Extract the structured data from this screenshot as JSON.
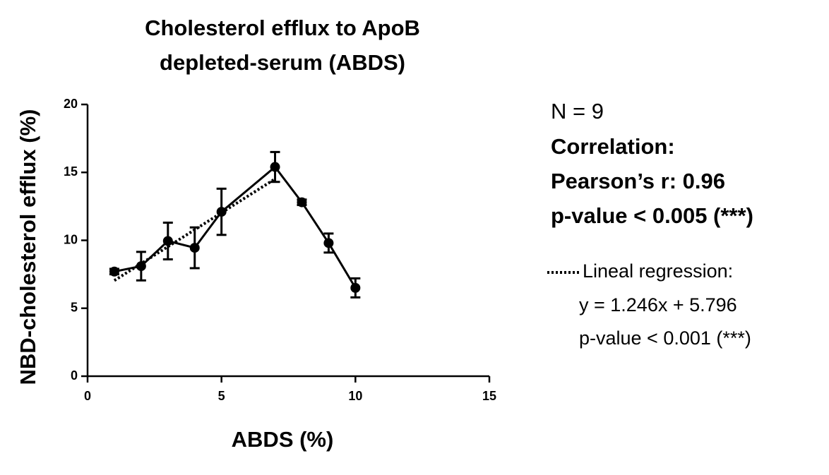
{
  "chart_data": {
    "type": "line",
    "title": [
      "Cholesterol efflux to ApoB",
      "depleted-serum (ABDS)"
    ],
    "xlabel": "ABDS (%)",
    "ylabel": "NBD-cholesterol efflux (%)",
    "x": [
      1,
      2,
      3,
      4,
      5,
      7,
      8,
      9,
      10
    ],
    "series": [
      {
        "color": "#000000",
        "values": [
          7.7,
          8.1,
          9.95,
          9.45,
          12.1,
          15.4,
          12.8,
          9.8,
          6.5
        ],
        "errors": [
          0.2,
          1.05,
          1.35,
          1.5,
          1.7,
          1.1,
          0.2,
          0.7,
          0.7
        ]
      },
      {
        "name": "Lineal regression:",
        "color": "#000000",
        "dash": "dotted",
        "x": [
          1,
          7
        ],
        "values": [
          7.04,
          14.52
        ]
      }
    ],
    "xlim": [
      0,
      15
    ],
    "xticks": [
      0,
      5,
      10,
      15
    ],
    "ylim": [
      0,
      20
    ],
    "yticks": [
      0,
      5,
      10,
      15,
      20
    ],
    "stats": [
      "N = 9",
      "Correlation:",
      "Pearson’s r: 0.96",
      "p-value < 0.005 (***)"
    ],
    "regression_text": [
      "y = 1.246x + 5.796",
      "p-value < 0.001 (***)"
    ]
  }
}
